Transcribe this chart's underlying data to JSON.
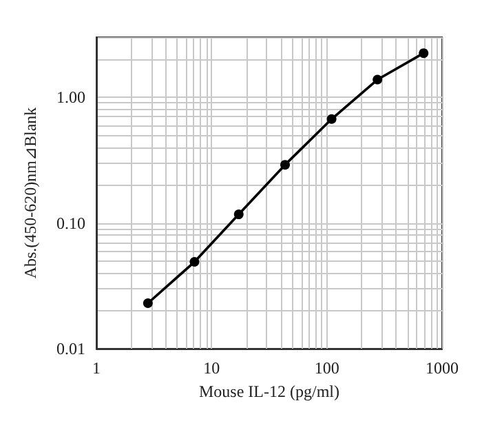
{
  "chart_data": {
    "type": "line",
    "xlabel": "Mouse IL-12 (pg/ml)",
    "ylabel": "Abs.(450-620)nm⊿Blank",
    "x": [
      2.8,
      7.1,
      17.2,
      43.4,
      110,
      275,
      692
    ],
    "values": [
      0.023,
      0.049,
      0.117,
      0.29,
      0.67,
      1.38,
      2.24
    ],
    "color": "#000000",
    "marker": "circle",
    "line_style": "solid",
    "log": "xy",
    "grid": true,
    "xlim": [
      1,
      1000
    ],
    "xticks": [
      1,
      10,
      100,
      1000
    ],
    "ylim": [
      0.01,
      3
    ],
    "yticks": [
      {
        "value": 0.01,
        "label": "0.01"
      },
      {
        "value": 0.1,
        "label": "0.10"
      },
      {
        "value": 1,
        "label": "1.00"
      }
    ]
  }
}
